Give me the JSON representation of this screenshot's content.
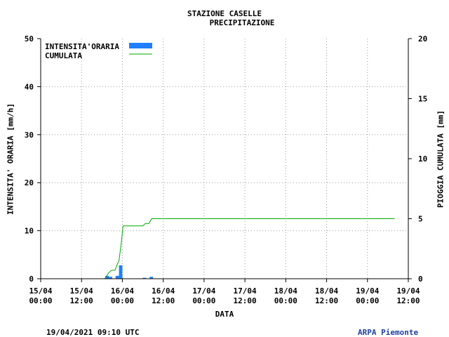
{
  "title": "STAZIONE CASELLE",
  "subtitle": "PRECIPITAZIONE",
  "footer_left": "19/04/2021 09:10 UTC",
  "footer_right": "ARPA Piemonte",
  "colors": {
    "bars": "#1f7fff",
    "cumulative": "#00aa00",
    "grid": "#999999"
  },
  "chart_data": {
    "type": "bar",
    "xlabel": "DATA",
    "ylabel_left": "INTENSITA' ORARIA [mm/h]",
    "ylabel_right": "PIOGGIA CUMULATA [mm]",
    "x_range_hours": [
      0,
      108
    ],
    "x_ticks": [
      {
        "h": 0,
        "date": "15/04",
        "time": "00:00"
      },
      {
        "h": 12,
        "date": "15/04",
        "time": "12:00"
      },
      {
        "h": 24,
        "date": "16/04",
        "time": "00:00"
      },
      {
        "h": 36,
        "date": "16/04",
        "time": "12:00"
      },
      {
        "h": 48,
        "date": "17/04",
        "time": "00:00"
      },
      {
        "h": 60,
        "date": "17/04",
        "time": "12:00"
      },
      {
        "h": 72,
        "date": "18/04",
        "time": "00:00"
      },
      {
        "h": 84,
        "date": "18/04",
        "time": "12:00"
      },
      {
        "h": 96,
        "date": "19/04",
        "time": "00:00"
      },
      {
        "h": 108,
        "date": "19/04",
        "time": "12:00"
      }
    ],
    "ylim_left": [
      0,
      50
    ],
    "yticks_left": [
      0,
      10,
      20,
      30,
      40,
      50
    ],
    "ylim_right": [
      0,
      20
    ],
    "yticks_right": [
      0,
      5,
      10,
      15,
      20
    ],
    "grid": true,
    "legend_position": "top-left",
    "series": [
      {
        "name": "INTENSITA'ORARIA",
        "axis": "left",
        "kind": "bar",
        "points": [
          {
            "h": 19,
            "v": 0.6
          },
          {
            "h": 20,
            "v": 0.4
          },
          {
            "h": 22,
            "v": 0.6
          },
          {
            "h": 23,
            "v": 2.8
          },
          {
            "h": 30,
            "v": 0.2
          },
          {
            "h": 32,
            "v": 0.4
          }
        ]
      },
      {
        "name": "CUMULATA",
        "axis": "right",
        "kind": "line",
        "points": [
          {
            "h": 0,
            "v": 0
          },
          {
            "h": 18.8,
            "v": 0
          },
          {
            "h": 19.3,
            "v": 0.2
          },
          {
            "h": 20,
            "v": 0.5
          },
          {
            "h": 20.8,
            "v": 0.7
          },
          {
            "h": 21.8,
            "v": 0.7
          },
          {
            "h": 22.5,
            "v": 1.2
          },
          {
            "h": 23,
            "v": 1.5
          },
          {
            "h": 23.6,
            "v": 2.8
          },
          {
            "h": 24.2,
            "v": 4.4
          },
          {
            "h": 30,
            "v": 4.4
          },
          {
            "h": 30.8,
            "v": 4.6
          },
          {
            "h": 31.8,
            "v": 4.6
          },
          {
            "h": 32.6,
            "v": 5.0
          },
          {
            "h": 35,
            "v": 5.0
          },
          {
            "h": 104,
            "v": 5.0
          }
        ]
      }
    ]
  }
}
